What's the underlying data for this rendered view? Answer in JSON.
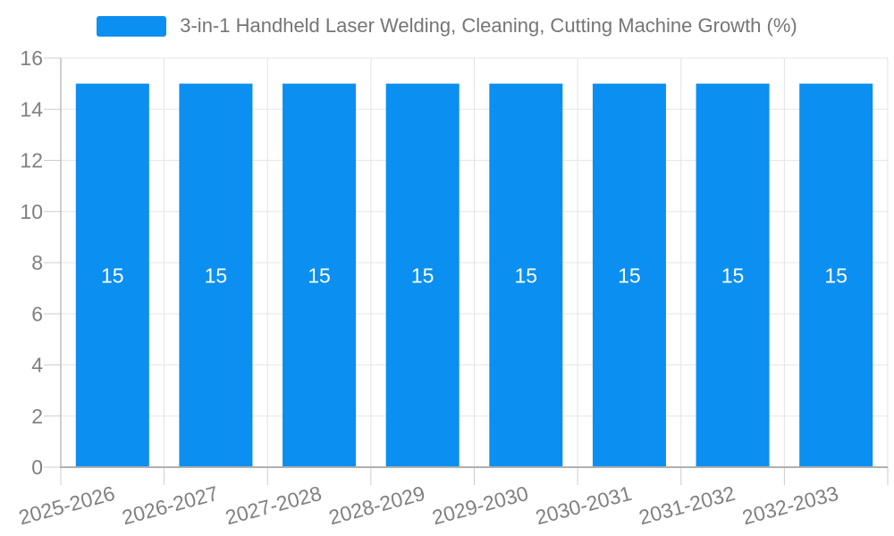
{
  "chart_data": {
    "type": "bar",
    "title": "3-in-1 Handheld Laser Welding, Cleaning, Cutting Machine Growth (%)",
    "categories": [
      "2025-2026",
      "2026-2027",
      "2027-2028",
      "2028-2029",
      "2029-2030",
      "2030-2031",
      "2031-2032",
      "2032-2033"
    ],
    "series": [
      {
        "name": "3-in-1 Handheld Laser Welding, Cleaning, Cutting Machine Growth (%)",
        "values": [
          15,
          15,
          15,
          15,
          15,
          15,
          15,
          15
        ]
      }
    ],
    "data_labels": [
      "15",
      "15",
      "15",
      "15",
      "15",
      "15",
      "15",
      "15"
    ],
    "xlabel": "",
    "ylabel": "",
    "ylim": [
      0,
      16
    ],
    "y_ticks": [
      0,
      2,
      4,
      6,
      8,
      10,
      12,
      14,
      16
    ],
    "grid": true,
    "legend_position": "top",
    "colors": {
      "bar": "#0b8ff0",
      "bar_label": "#ffffff",
      "axis_text": "#808080",
      "legend_text": "#757575",
      "grid_line": "#e6e6e6",
      "x_grid_line": "#e3e3e3",
      "axis_line": "#b0b0b0",
      "tick": "#cccccc"
    }
  }
}
